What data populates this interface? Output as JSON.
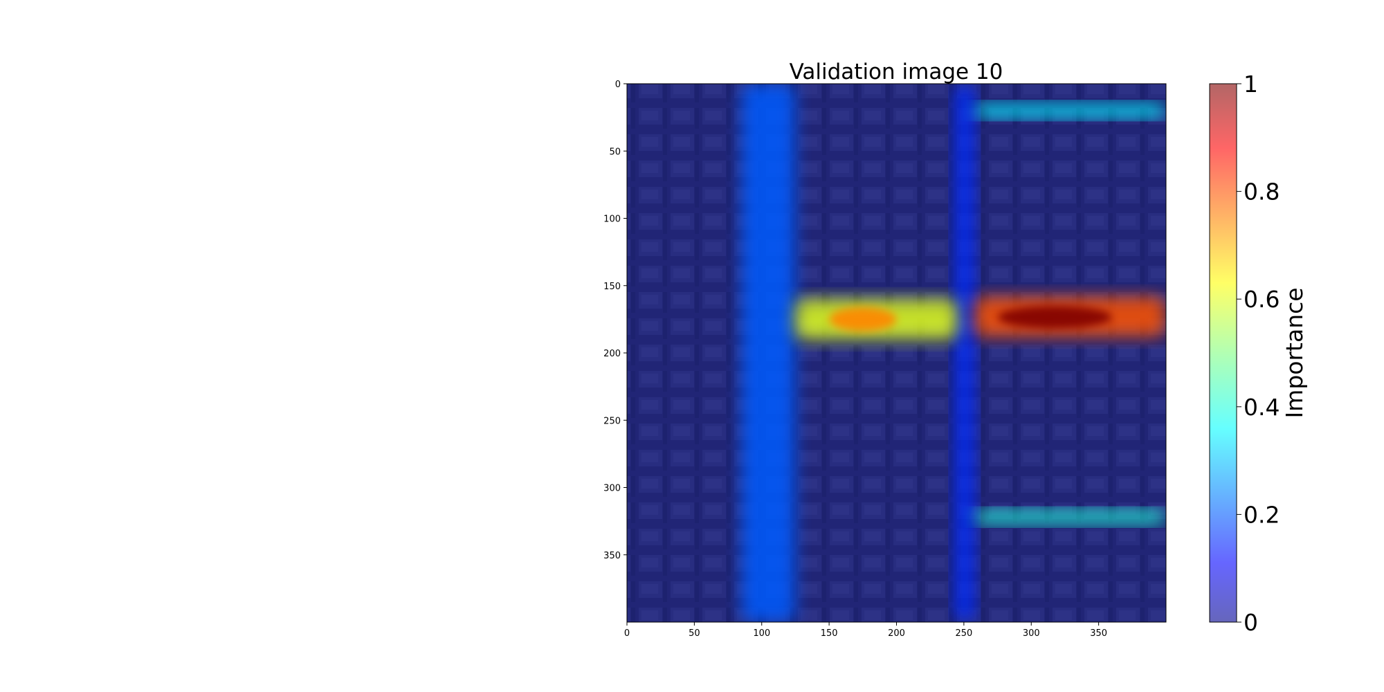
{
  "chart_data": {
    "type": "heatmap",
    "title": "Validation image 10",
    "x_ticks": [
      0,
      50,
      100,
      150,
      200,
      250,
      300,
      350
    ],
    "y_ticks": [
      0,
      50,
      100,
      150,
      200,
      250,
      300,
      350
    ],
    "xlim": [
      0,
      400
    ],
    "ylim": [
      400,
      0
    ],
    "colorbar": {
      "label": "Importance",
      "range": [
        0,
        1
      ],
      "ticks": [
        0,
        0.2,
        0.4,
        0.6,
        0.8,
        1
      ],
      "tick_labels": [
        "0",
        "0.2",
        "0.4",
        "0.6",
        "0.8",
        "1"
      ],
      "colormap": "jet"
    },
    "overlay_regions": [
      {
        "name": "vertical-road-left",
        "x": [
          85,
          125
        ],
        "y": [
          0,
          400
        ],
        "importance": 0.2
      },
      {
        "name": "vertical-road-right",
        "x": [
          243,
          258
        ],
        "y": [
          0,
          400
        ],
        "importance": 0.15
      },
      {
        "name": "horizontal-road-top",
        "x": [
          258,
          400
        ],
        "y": [
          15,
          25
        ],
        "importance": 0.35
      },
      {
        "name": "horizontal-road-bottom",
        "x": [
          258,
          400
        ],
        "y": [
          317,
          327
        ],
        "importance": 0.4
      },
      {
        "name": "horizontal-road-middle-left",
        "x": [
          125,
          245
        ],
        "y": [
          160,
          190
        ],
        "importance": 0.6
      },
      {
        "name": "horizontal-road-middle-right",
        "x": [
          258,
          400
        ],
        "y": [
          158,
          188
        ],
        "importance": 0.8
      }
    ],
    "peak_regions": [
      {
        "name": "peak-middle-right",
        "x": [
          275,
          360
        ],
        "y": [
          165,
          182
        ],
        "importance": 1.0
      },
      {
        "name": "peak-middle-left",
        "x": [
          150,
          200
        ],
        "y": [
          166,
          184
        ],
        "importance": 0.75
      }
    ]
  }
}
